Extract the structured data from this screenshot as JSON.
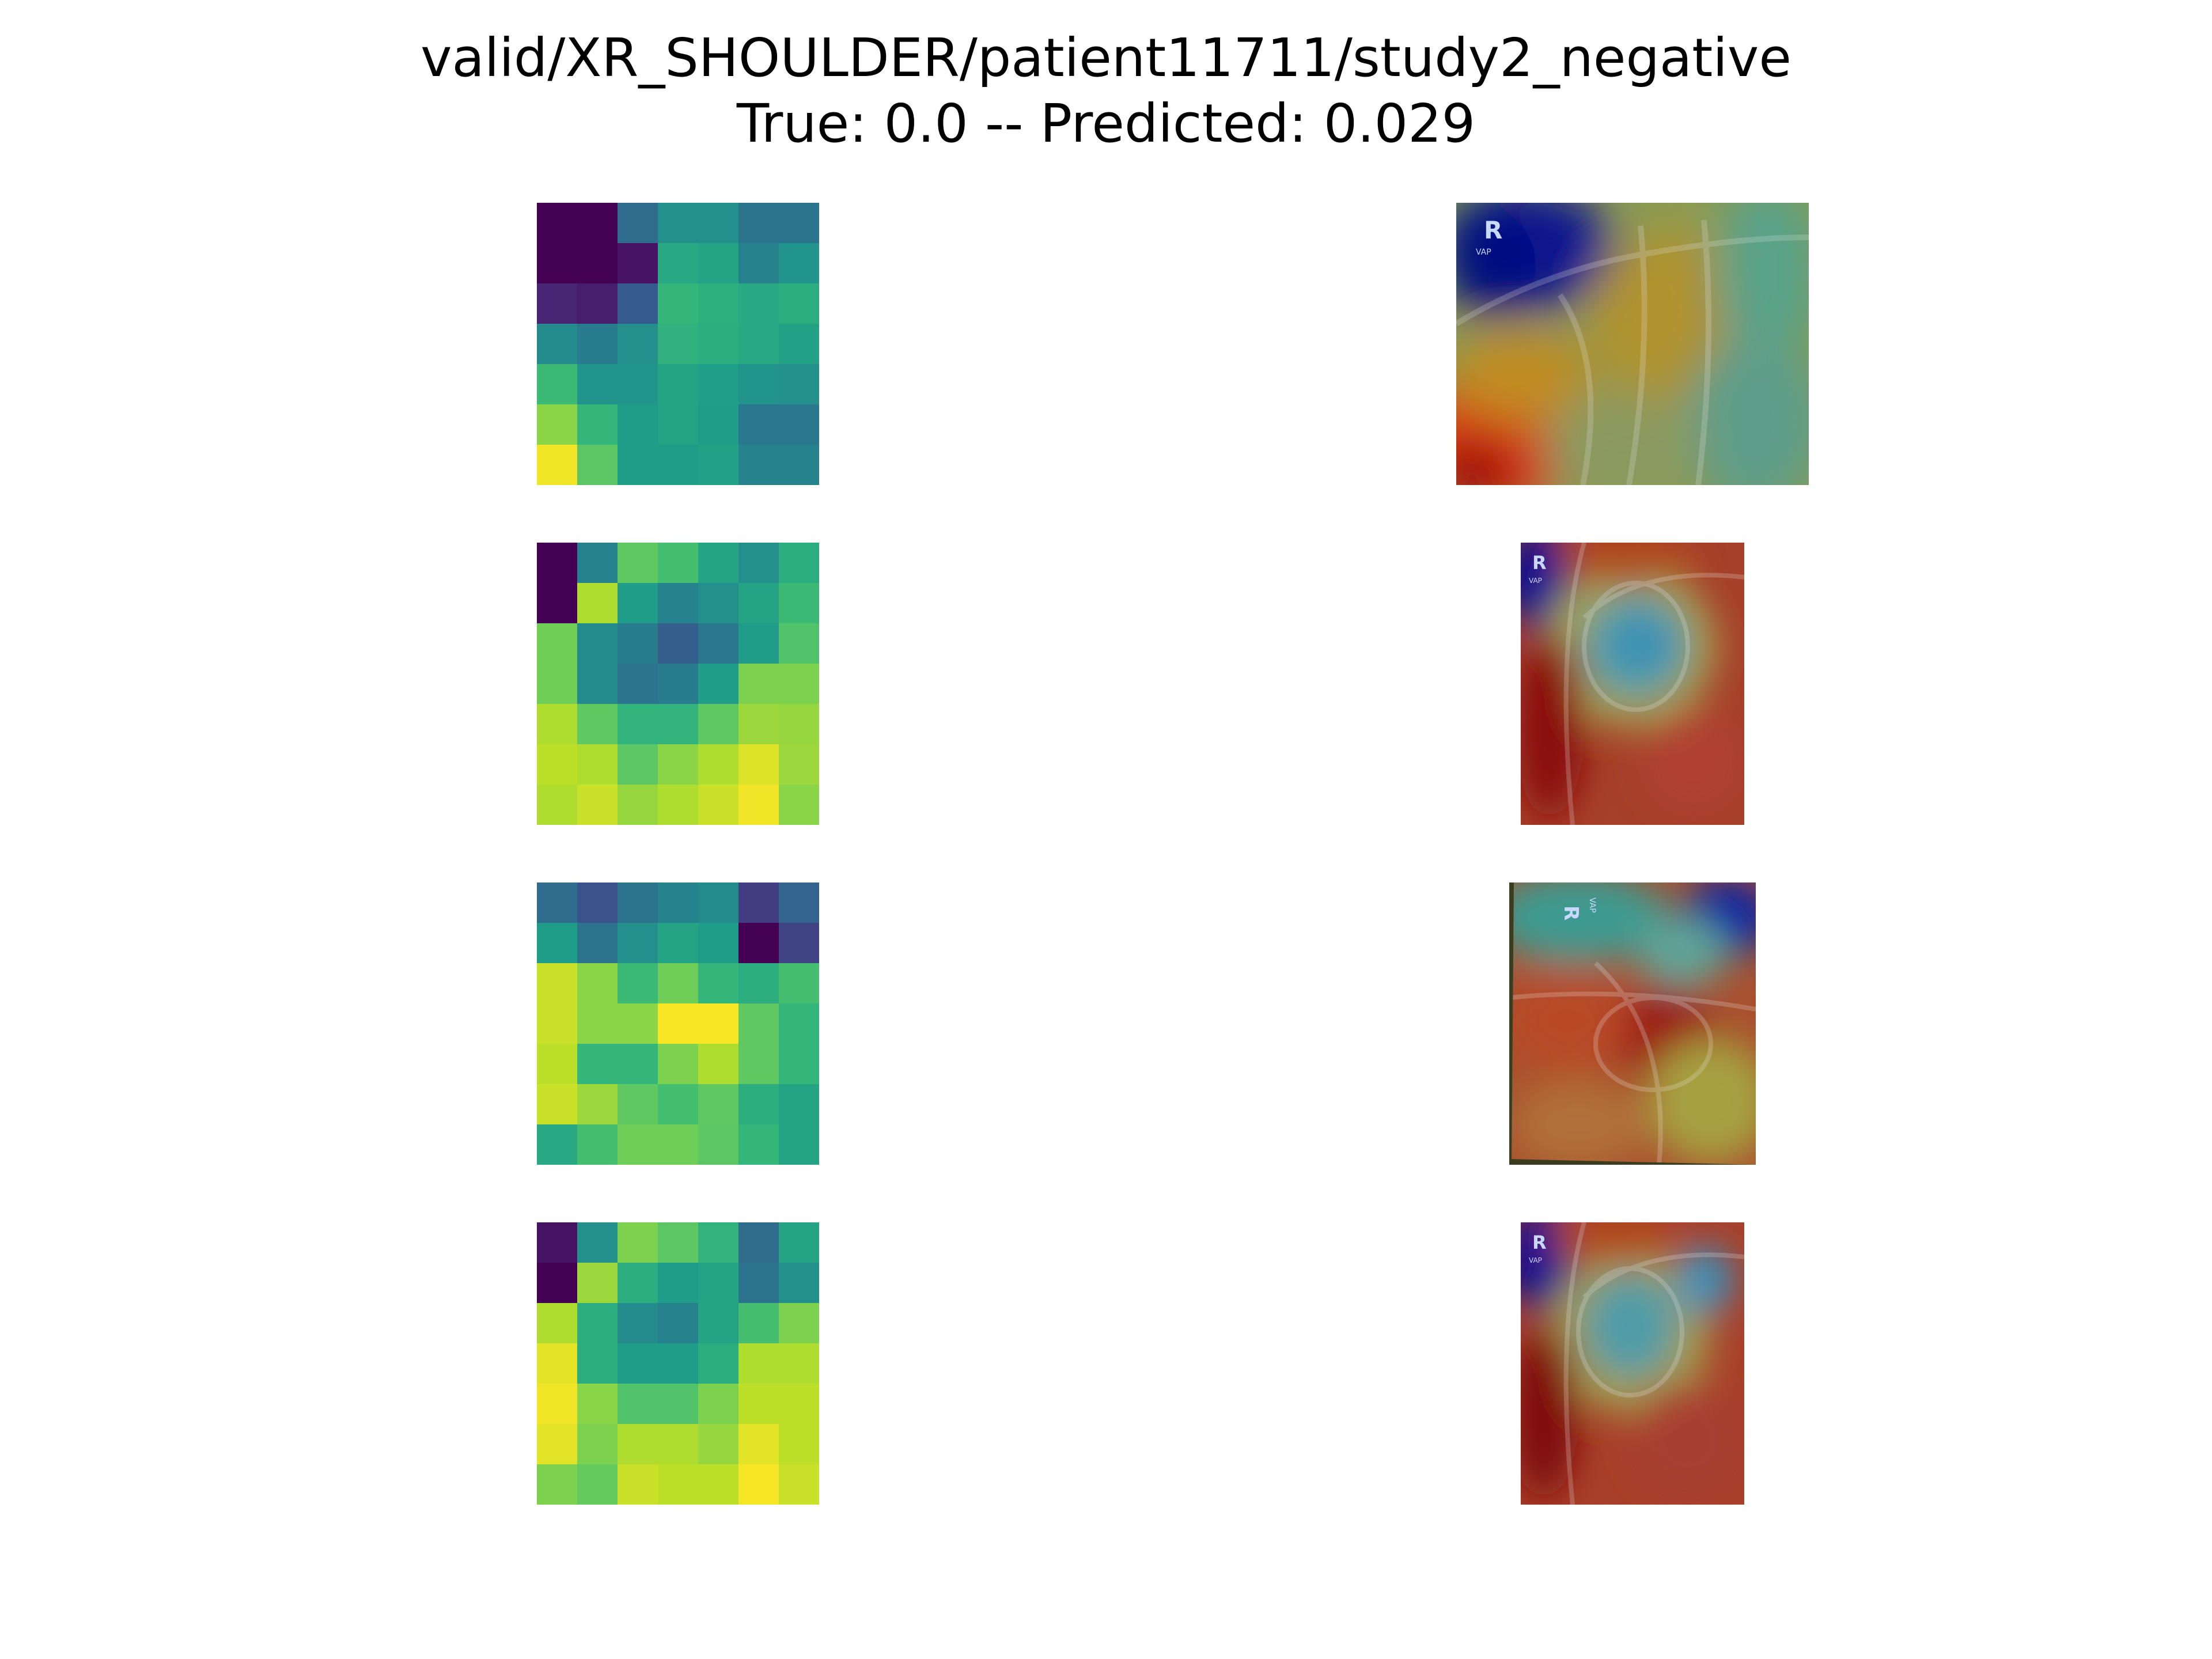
{
  "figure": {
    "title_line_1": "valid/XR_SHOULDER/patient11711/study2_negative",
    "title_line_2": "True: 0.0 -- Predicted: 0.029"
  },
  "colormap": "viridis",
  "heatmaps": [
    {
      "name": "heatmap-1",
      "values": [
        [
          0.0,
          0.0,
          0.35,
          0.5,
          0.5,
          0.38,
          0.38
        ],
        [
          0.0,
          0.0,
          0.05,
          0.6,
          0.58,
          0.45,
          0.52
        ],
        [
          0.1,
          0.08,
          0.28,
          0.66,
          0.63,
          0.6,
          0.62
        ],
        [
          0.48,
          0.42,
          0.5,
          0.64,
          0.62,
          0.6,
          0.57
        ],
        [
          0.68,
          0.52,
          0.52,
          0.58,
          0.56,
          0.52,
          0.5
        ],
        [
          0.82,
          0.66,
          0.55,
          0.58,
          0.55,
          0.4,
          0.4
        ],
        [
          0.98,
          0.74,
          0.55,
          0.55,
          0.57,
          0.45,
          0.45
        ]
      ]
    },
    {
      "name": "heatmap-2",
      "values": [
        [
          0.0,
          0.45,
          0.75,
          0.7,
          0.58,
          0.5,
          0.62
        ],
        [
          0.0,
          0.88,
          0.55,
          0.45,
          0.5,
          0.58,
          0.68
        ],
        [
          0.78,
          0.48,
          0.42,
          0.3,
          0.4,
          0.55,
          0.72
        ],
        [
          0.78,
          0.48,
          0.38,
          0.42,
          0.55,
          0.8,
          0.8
        ],
        [
          0.88,
          0.75,
          0.65,
          0.65,
          0.75,
          0.85,
          0.84
        ],
        [
          0.9,
          0.88,
          0.74,
          0.82,
          0.88,
          0.95,
          0.85
        ],
        [
          0.88,
          0.92,
          0.84,
          0.88,
          0.92,
          0.98,
          0.82
        ]
      ]
    },
    {
      "name": "heatmap-3",
      "values": [
        [
          0.35,
          0.25,
          0.38,
          0.45,
          0.48,
          0.18,
          0.32
        ],
        [
          0.55,
          0.38,
          0.5,
          0.58,
          0.55,
          0.0,
          0.2
        ],
        [
          0.92,
          0.82,
          0.68,
          0.78,
          0.66,
          0.62,
          0.7
        ],
        [
          0.92,
          0.82,
          0.82,
          0.99,
          0.99,
          0.75,
          0.66
        ],
        [
          0.9,
          0.66,
          0.66,
          0.8,
          0.88,
          0.75,
          0.66
        ],
        [
          0.92,
          0.85,
          0.75,
          0.7,
          0.75,
          0.62,
          0.58
        ],
        [
          0.6,
          0.7,
          0.78,
          0.78,
          0.74,
          0.66,
          0.58
        ]
      ]
    },
    {
      "name": "heatmap-4",
      "values": [
        [
          0.05,
          0.5,
          0.8,
          0.74,
          0.65,
          0.35,
          0.58
        ],
        [
          0.0,
          0.85,
          0.62,
          0.55,
          0.58,
          0.38,
          0.5
        ],
        [
          0.88,
          0.62,
          0.48,
          0.45,
          0.58,
          0.7,
          0.8
        ],
        [
          0.96,
          0.62,
          0.55,
          0.55,
          0.62,
          0.88,
          0.88
        ],
        [
          0.98,
          0.82,
          0.72,
          0.72,
          0.8,
          0.9,
          0.9
        ],
        [
          0.96,
          0.8,
          0.88,
          0.88,
          0.84,
          0.96,
          0.9
        ],
        [
          0.8,
          0.76,
          0.92,
          0.9,
          0.9,
          0.99,
          0.92
        ]
      ]
    }
  ],
  "overlays": [
    {
      "name": "xray-overlay-1",
      "marker_text": "R"
    },
    {
      "name": "xray-overlay-2",
      "marker_text": "R"
    },
    {
      "name": "xray-overlay-3",
      "marker_text": "R"
    },
    {
      "name": "xray-overlay-4",
      "marker_text": "R"
    }
  ]
}
